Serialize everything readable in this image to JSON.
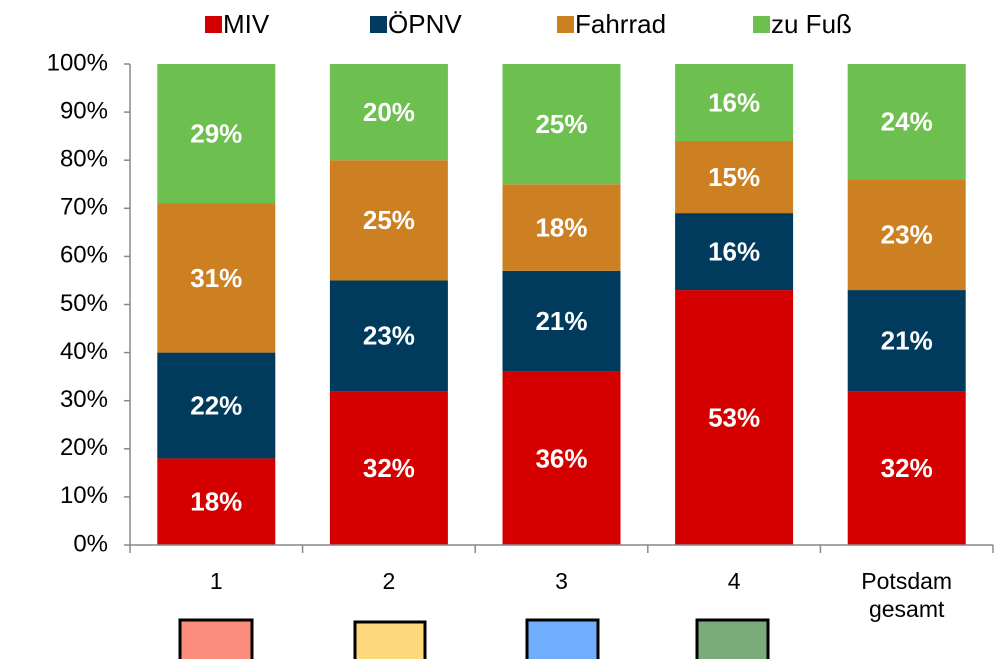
{
  "chart_data": {
    "type": "stacked_bar",
    "categories": [
      "1",
      "2",
      "3",
      "4",
      "Potsdam gesamt"
    ],
    "series": [
      {
        "name": "MIV",
        "color": "#d40000",
        "values": [
          18,
          32,
          36,
          53,
          32
        ],
        "value_labels": [
          "18%",
          "32%",
          "36%",
          "53%",
          "32%"
        ]
      },
      {
        "name": "ÖPNV",
        "color": "#003a5c",
        "values": [
          22,
          23,
          21,
          16,
          21
        ],
        "value_labels": [
          "22%",
          "23%",
          "21%",
          "16%",
          "21%"
        ]
      },
      {
        "name": "Fahrrad",
        "color": "#cc8022",
        "values": [
          31,
          25,
          18,
          15,
          23
        ],
        "value_labels": [
          "31%",
          "25%",
          "18%",
          "15%",
          "23%"
        ]
      },
      {
        "name": "zu Fuß",
        "color": "#6dbf4f",
        "values": [
          29,
          20,
          25,
          16,
          24
        ],
        "value_labels": [
          "29%",
          "20%",
          "25%",
          "16%",
          "24%"
        ]
      }
    ],
    "ylim": [
      0,
      100
    ],
    "yticks": [
      {
        "value": 0,
        "label": "0%"
      },
      {
        "value": 10,
        "label": "10%"
      },
      {
        "value": 20,
        "label": "20%"
      },
      {
        "value": 30,
        "label": "30%"
      },
      {
        "value": 40,
        "label": "40%"
      },
      {
        "value": 50,
        "label": "50%"
      },
      {
        "value": 60,
        "label": "60%"
      },
      {
        "value": 70,
        "label": "70%"
      },
      {
        "value": 80,
        "label": "80%"
      },
      {
        "value": 90,
        "label": "90%"
      },
      {
        "value": 100,
        "label": "100%"
      }
    ],
    "legend": "top"
  }
}
